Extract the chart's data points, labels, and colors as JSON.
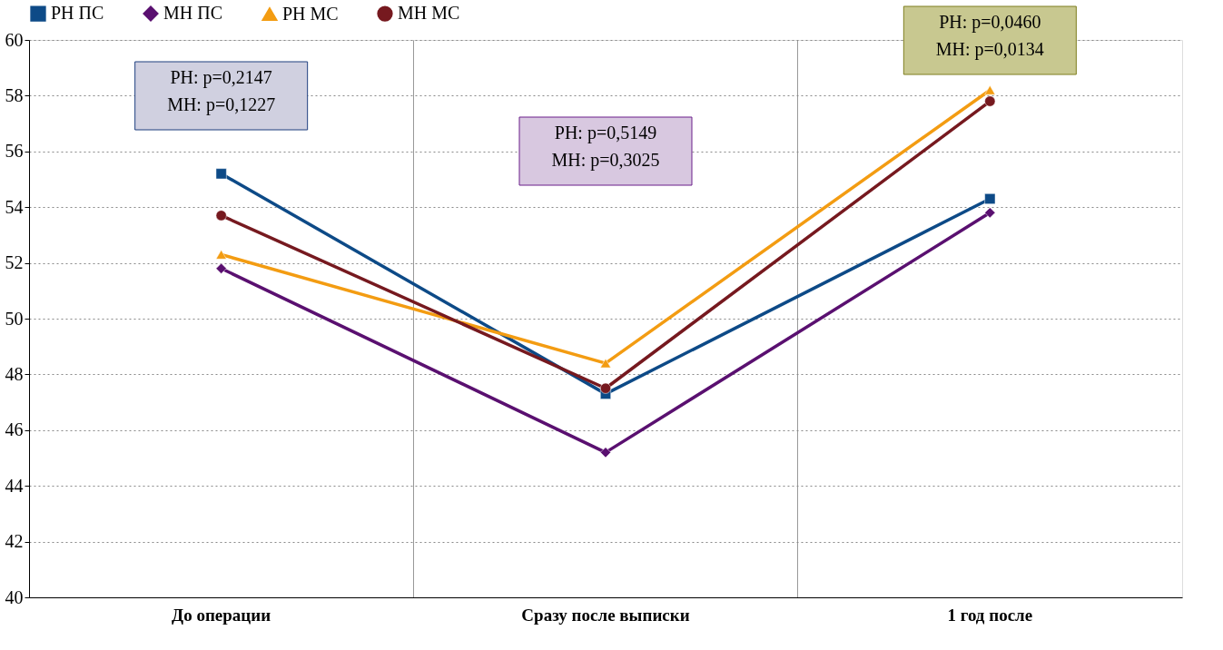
{
  "chart_data": {
    "type": "line",
    "categories": [
      "До операции",
      "Сразу после выписки",
      "1 год после"
    ],
    "series": [
      {
        "name": "РН ПС",
        "color": "#0d4a87",
        "marker": "square",
        "values": [
          55.2,
          47.3,
          54.3
        ]
      },
      {
        "name": "МН ПС",
        "color": "#5a1070",
        "marker": "diamond",
        "values": [
          51.8,
          45.2,
          53.8
        ]
      },
      {
        "name": "РН МС",
        "color": "#f39c12",
        "marker": "triangle",
        "values": [
          52.3,
          48.4,
          58.2
        ]
      },
      {
        "name": "МН МС",
        "color": "#76191f",
        "marker": "circle",
        "values": [
          53.7,
          47.5,
          57.8
        ]
      }
    ],
    "ylim": [
      40,
      60
    ],
    "yticks": [
      40,
      42,
      44,
      46,
      48,
      50,
      52,
      54,
      56,
      58,
      60
    ],
    "grid": true,
    "legend": "top",
    "annotations": [
      "РН: p=0,2147\nМН: p=0,1227",
      "РН: p=0,5149\nМН: p=0,3025",
      "РН: p=0,0460\nМН: p=0,0134"
    ]
  }
}
